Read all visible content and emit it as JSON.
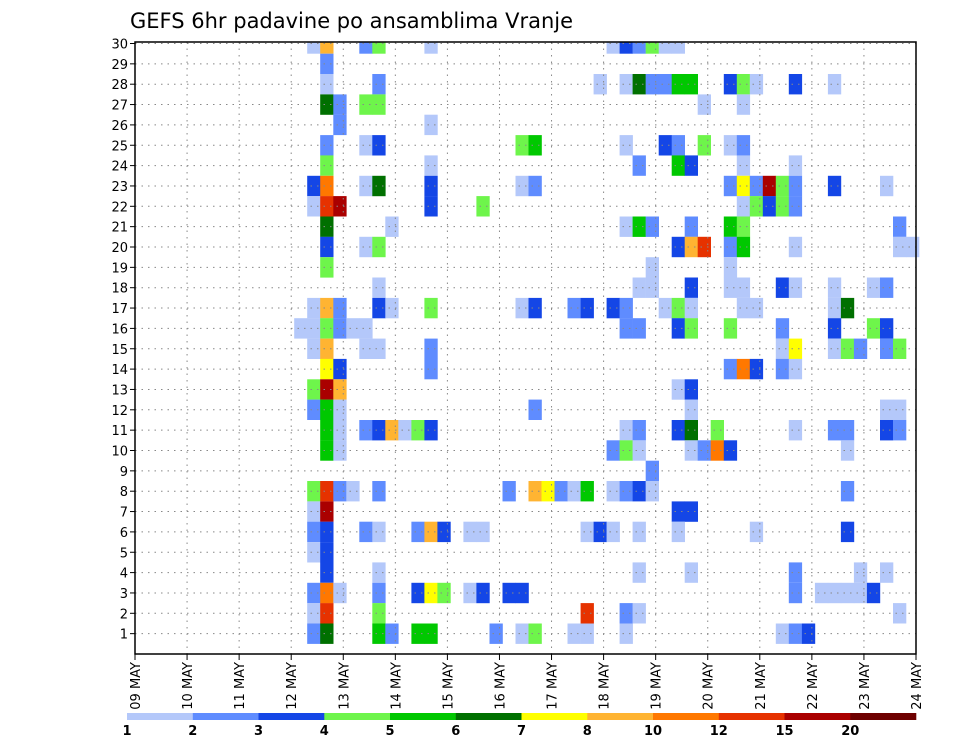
{
  "chart_data": {
    "type": "heatmap",
    "title": "GEFS 6hr padavine po ansamblima Vranje",
    "xlabel": "",
    "ylabel": "",
    "x_unit": "6-hour step from 09 MAY",
    "x_tick_labels": [
      "09 MAY",
      "10 MAY",
      "11 MAY",
      "12 MAY",
      "13 MAY",
      "14 MAY",
      "15 MAY",
      "16 MAY",
      "17 MAY",
      "18 MAY",
      "19 MAY",
      "20 MAY",
      "21 MAY",
      "22 MAY",
      "23 MAY",
      "24 MAY"
    ],
    "y_tick_labels": [
      "1",
      "2",
      "3",
      "4",
      "5",
      "6",
      "7",
      "8",
      "9",
      "10",
      "11",
      "12",
      "13",
      "14",
      "15",
      "16",
      "17",
      "18",
      "19",
      "20",
      "21",
      "22",
      "23",
      "24",
      "25",
      "26",
      "27",
      "28",
      "29",
      "30"
    ],
    "ylim": [
      0,
      30
    ],
    "xlim": [
      0,
      60
    ],
    "grid": true,
    "colorbar": {
      "levels": [
        1,
        2,
        3,
        4,
        5,
        6,
        7,
        8,
        10,
        12,
        15,
        20
      ],
      "labels": [
        "1",
        "2",
        "3",
        "4",
        "5",
        "6",
        "7",
        "8",
        "10",
        "12",
        "15",
        "20"
      ],
      "colors": [
        "#b4c8fa",
        "#5f8cff",
        "#1446e6",
        "#6ef54b",
        "#00c800",
        "#007000",
        "#ffff00",
        "#ffb432",
        "#ff7800",
        "#e63200",
        "#aa0000",
        "#6e0000"
      ]
    },
    "cells_format": "[step, member, precipitation_mm]",
    "cells": [
      [
        13,
        30,
        1.5
      ],
      [
        14,
        30,
        9
      ],
      [
        17,
        30,
        2.5
      ],
      [
        18,
        30,
        4.5
      ],
      [
        22,
        30,
        1.5
      ],
      [
        36,
        30,
        1.5
      ],
      [
        37,
        30,
        3.5
      ],
      [
        38,
        30,
        2.5
      ],
      [
        39,
        30,
        4.5
      ],
      [
        40,
        30,
        1.5
      ],
      [
        41,
        30,
        1.5
      ],
      [
        14,
        29,
        2.5
      ],
      [
        14,
        28,
        1.5
      ],
      [
        18,
        28,
        2.5
      ],
      [
        35,
        28,
        1.5
      ],
      [
        37,
        28,
        1.5
      ],
      [
        38,
        28,
        6.5
      ],
      [
        39,
        28,
        2.5
      ],
      [
        40,
        28,
        2.5
      ],
      [
        41,
        28,
        5.5
      ],
      [
        42,
        28,
        5.5
      ],
      [
        45,
        28,
        3.5
      ],
      [
        46,
        28,
        4.5
      ],
      [
        47,
        28,
        1.5
      ],
      [
        50,
        28,
        3.5
      ],
      [
        53,
        28,
        1.5
      ],
      [
        14,
        27,
        6.5
      ],
      [
        15,
        27,
        2.5
      ],
      [
        17,
        27,
        4.5
      ],
      [
        18,
        27,
        4.5
      ],
      [
        43,
        27,
        1.5
      ],
      [
        46,
        27,
        1.5
      ],
      [
        15,
        26,
        2.5
      ],
      [
        22,
        26,
        1.5
      ],
      [
        14,
        25,
        2.5
      ],
      [
        17,
        25,
        1.5
      ],
      [
        18,
        25,
        3.5
      ],
      [
        29,
        25,
        4.5
      ],
      [
        30,
        25,
        5.5
      ],
      [
        37,
        25,
        1.5
      ],
      [
        40,
        25,
        3.5
      ],
      [
        41,
        25,
        2.5
      ],
      [
        43,
        25,
        4.5
      ],
      [
        45,
        25,
        1.5
      ],
      [
        46,
        25,
        2.5
      ],
      [
        14,
        24,
        4.5
      ],
      [
        22,
        24,
        1.5
      ],
      [
        38,
        24,
        2.5
      ],
      [
        41,
        24,
        5.5
      ],
      [
        42,
        24,
        3.5
      ],
      [
        46,
        24,
        1.5
      ],
      [
        50,
        24,
        1.5
      ],
      [
        13,
        23,
        3.5
      ],
      [
        14,
        23,
        11
      ],
      [
        17,
        23,
        1.5
      ],
      [
        18,
        23,
        6.5
      ],
      [
        22,
        23,
        3.5
      ],
      [
        29,
        23,
        1.5
      ],
      [
        30,
        23,
        2.5
      ],
      [
        45,
        23,
        2.5
      ],
      [
        46,
        23,
        7.5
      ],
      [
        47,
        23,
        2.5
      ],
      [
        48,
        23,
        17.5
      ],
      [
        49,
        23,
        4.5
      ],
      [
        50,
        23,
        2.5
      ],
      [
        53,
        23,
        3.5
      ],
      [
        57,
        23,
        1.5
      ],
      [
        13,
        22,
        1.5
      ],
      [
        14,
        22,
        13.5
      ],
      [
        15,
        22,
        17.5
      ],
      [
        22,
        22,
        3.5
      ],
      [
        26,
        22,
        4.5
      ],
      [
        46,
        22,
        1.5
      ],
      [
        47,
        22,
        4.5
      ],
      [
        48,
        22,
        3.5
      ],
      [
        49,
        22,
        4.5
      ],
      [
        50,
        22,
        2.5
      ],
      [
        14,
        21,
        6.5
      ],
      [
        19,
        21,
        1.5
      ],
      [
        37,
        21,
        1.5
      ],
      [
        38,
        21,
        5.5
      ],
      [
        39,
        21,
        2.5
      ],
      [
        42,
        21,
        2.5
      ],
      [
        45,
        21,
        5.5
      ],
      [
        46,
        21,
        4.5
      ],
      [
        58,
        21,
        2.5
      ],
      [
        14,
        20,
        3.5
      ],
      [
        17,
        20,
        1.5
      ],
      [
        18,
        20,
        4.5
      ],
      [
        41,
        20,
        3.5
      ],
      [
        42,
        20,
        9
      ],
      [
        43,
        20,
        13.5
      ],
      [
        45,
        20,
        2.5
      ],
      [
        46,
        20,
        5.5
      ],
      [
        50,
        20,
        1.5
      ],
      [
        58,
        20,
        1.5
      ],
      [
        59,
        20,
        1.5
      ],
      [
        14,
        19,
        4.5
      ],
      [
        39,
        19,
        1.5
      ],
      [
        45,
        19,
        1.5
      ],
      [
        18,
        18,
        1.5
      ],
      [
        38,
        18,
        1.5
      ],
      [
        39,
        18,
        1.5
      ],
      [
        42,
        18,
        3.5
      ],
      [
        45,
        18,
        1.5
      ],
      [
        46,
        18,
        1.5
      ],
      [
        49,
        18,
        3.5
      ],
      [
        50,
        18,
        1.5
      ],
      [
        53,
        18,
        1.5
      ],
      [
        56,
        18,
        1.5
      ],
      [
        57,
        18,
        2.5
      ],
      [
        13,
        17,
        1.5
      ],
      [
        14,
        17,
        9
      ],
      [
        15,
        17,
        2.5
      ],
      [
        18,
        17,
        3.5
      ],
      [
        19,
        17,
        1.5
      ],
      [
        22,
        17,
        4.5
      ],
      [
        29,
        17,
        1.5
      ],
      [
        30,
        17,
        3.5
      ],
      [
        33,
        17,
        2.5
      ],
      [
        34,
        17,
        3.5
      ],
      [
        36,
        17,
        3.5
      ],
      [
        37,
        17,
        2.5
      ],
      [
        40,
        17,
        1.5
      ],
      [
        41,
        17,
        4.5
      ],
      [
        42,
        17,
        1.5
      ],
      [
        46,
        17,
        1.5
      ],
      [
        47,
        17,
        1.5
      ],
      [
        53,
        17,
        1.5
      ],
      [
        54,
        17,
        6.5
      ],
      [
        12,
        16,
        1.5
      ],
      [
        13,
        16,
        1.5
      ],
      [
        14,
        16,
        4.5
      ],
      [
        15,
        16,
        2.5
      ],
      [
        16,
        16,
        1.5
      ],
      [
        17,
        16,
        1.5
      ],
      [
        37,
        16,
        2.5
      ],
      [
        38,
        16,
        2.5
      ],
      [
        41,
        16,
        3.5
      ],
      [
        42,
        16,
        4.5
      ],
      [
        45,
        16,
        4.5
      ],
      [
        49,
        16,
        2.5
      ],
      [
        53,
        16,
        3.5
      ],
      [
        56,
        16,
        4.5
      ],
      [
        57,
        16,
        3.5
      ],
      [
        13,
        15,
        1.5
      ],
      [
        14,
        15,
        9
      ],
      [
        17,
        15,
        1.5
      ],
      [
        18,
        15,
        1.5
      ],
      [
        22,
        15,
        2.5
      ],
      [
        49,
        15,
        1.5
      ],
      [
        50,
        15,
        7.5
      ],
      [
        53,
        15,
        1.5
      ],
      [
        54,
        15,
        4.5
      ],
      [
        55,
        15,
        2.5
      ],
      [
        57,
        15,
        2.5
      ],
      [
        58,
        15,
        4.5
      ],
      [
        14,
        14,
        7.5
      ],
      [
        15,
        14,
        3.5
      ],
      [
        22,
        14,
        2.5
      ],
      [
        45,
        14,
        2.5
      ],
      [
        46,
        14,
        11
      ],
      [
        47,
        14,
        3.5
      ],
      [
        49,
        14,
        2.5
      ],
      [
        50,
        14,
        1.5
      ],
      [
        13,
        13,
        4.5
      ],
      [
        14,
        13,
        17.5
      ],
      [
        15,
        13,
        9
      ],
      [
        41,
        13,
        1.5
      ],
      [
        42,
        13,
        3.5
      ],
      [
        13,
        12,
        2.5
      ],
      [
        14,
        12,
        5.5
      ],
      [
        15,
        12,
        1.5
      ],
      [
        30,
        12,
        2.5
      ],
      [
        42,
        12,
        1.5
      ],
      [
        57,
        12,
        1.5
      ],
      [
        58,
        12,
        1.5
      ],
      [
        14,
        11,
        5.5
      ],
      [
        15,
        11,
        1.5
      ],
      [
        17,
        11,
        2.5
      ],
      [
        18,
        11,
        3.5
      ],
      [
        19,
        11,
        9
      ],
      [
        20,
        11,
        1.5
      ],
      [
        21,
        11,
        4.5
      ],
      [
        22,
        11,
        3.5
      ],
      [
        37,
        11,
        1.5
      ],
      [
        38,
        11,
        2.5
      ],
      [
        41,
        11,
        3.5
      ],
      [
        42,
        11,
        6.5
      ],
      [
        44,
        11,
        4.5
      ],
      [
        50,
        11,
        1.5
      ],
      [
        53,
        11,
        2.5
      ],
      [
        54,
        11,
        2.5
      ],
      [
        57,
        11,
        3.5
      ],
      [
        58,
        11,
        2.5
      ],
      [
        14,
        10,
        5.5
      ],
      [
        15,
        10,
        1.5
      ],
      [
        36,
        10,
        2.5
      ],
      [
        37,
        10,
        4.5
      ],
      [
        38,
        10,
        1.5
      ],
      [
        42,
        10,
        1.5
      ],
      [
        43,
        10,
        2.5
      ],
      [
        44,
        10,
        11
      ],
      [
        45,
        10,
        3.5
      ],
      [
        54,
        10,
        1.5
      ],
      [
        39,
        9,
        2.5
      ],
      [
        13,
        8,
        4.5
      ],
      [
        14,
        8,
        13.5
      ],
      [
        15,
        8,
        2.5
      ],
      [
        16,
        8,
        1.5
      ],
      [
        18,
        8,
        2.5
      ],
      [
        28,
        8,
        2.5
      ],
      [
        30,
        8,
        9
      ],
      [
        31,
        8,
        7.5
      ],
      [
        32,
        8,
        2.5
      ],
      [
        33,
        8,
        1.5
      ],
      [
        34,
        8,
        5.5
      ],
      [
        36,
        8,
        1.5
      ],
      [
        37,
        8,
        2.5
      ],
      [
        38,
        8,
        3.5
      ],
      [
        39,
        8,
        1.5
      ],
      [
        54,
        8,
        2.5
      ],
      [
        13,
        7,
        1.5
      ],
      [
        14,
        7,
        17.5
      ],
      [
        41,
        7,
        3.5
      ],
      [
        42,
        7,
        3.5
      ],
      [
        13,
        6,
        2.5
      ],
      [
        14,
        6,
        3.5
      ],
      [
        17,
        6,
        2.5
      ],
      [
        18,
        6,
        1.5
      ],
      [
        21,
        6,
        2.5
      ],
      [
        22,
        6,
        9
      ],
      [
        23,
        6,
        3.5
      ],
      [
        25,
        6,
        1.5
      ],
      [
        26,
        6,
        1.5
      ],
      [
        34,
        6,
        1.5
      ],
      [
        35,
        6,
        3.5
      ],
      [
        36,
        6,
        1.5
      ],
      [
        38,
        6,
        1.5
      ],
      [
        41,
        6,
        1.5
      ],
      [
        47,
        6,
        1.5
      ],
      [
        54,
        6,
        3.5
      ],
      [
        13,
        5,
        1.5
      ],
      [
        14,
        5,
        3.5
      ],
      [
        14,
        4,
        3.5
      ],
      [
        18,
        4,
        1.5
      ],
      [
        38,
        4,
        1.5
      ],
      [
        42,
        4,
        1.5
      ],
      [
        50,
        4,
        2.5
      ],
      [
        55,
        4,
        1.5
      ],
      [
        57,
        4,
        1.5
      ],
      [
        13,
        3,
        2.5
      ],
      [
        14,
        3,
        11
      ],
      [
        15,
        3,
        1.5
      ],
      [
        18,
        3,
        2.5
      ],
      [
        21,
        3,
        3.5
      ],
      [
        22,
        3,
        7.5
      ],
      [
        23,
        3,
        4.5
      ],
      [
        25,
        3,
        1.5
      ],
      [
        26,
        3,
        3.5
      ],
      [
        28,
        3,
        3.5
      ],
      [
        29,
        3,
        3.5
      ],
      [
        50,
        3,
        2.5
      ],
      [
        52,
        3,
        1.5
      ],
      [
        53,
        3,
        1.5
      ],
      [
        54,
        3,
        1.5
      ],
      [
        55,
        3,
        1.5
      ],
      [
        56,
        3,
        3.5
      ],
      [
        13,
        2,
        1.5
      ],
      [
        14,
        2,
        13.5
      ],
      [
        18,
        2,
        4.5
      ],
      [
        34,
        2,
        13.5
      ],
      [
        37,
        2,
        2.5
      ],
      [
        38,
        2,
        1.5
      ],
      [
        58,
        2,
        1.5
      ],
      [
        13,
        1,
        2.5
      ],
      [
        14,
        1,
        6.5
      ],
      [
        18,
        1,
        5.5
      ],
      [
        19,
        1,
        2.5
      ],
      [
        21,
        1,
        5.5
      ],
      [
        22,
        1,
        5.5
      ],
      [
        27,
        1,
        2.5
      ],
      [
        29,
        1,
        1.5
      ],
      [
        30,
        1,
        4.5
      ],
      [
        33,
        1,
        1.5
      ],
      [
        34,
        1,
        1.5
      ],
      [
        37,
        1,
        1.5
      ],
      [
        49,
        1,
        1.5
      ],
      [
        50,
        1,
        2.5
      ],
      [
        51,
        1,
        3.5
      ]
    ]
  }
}
